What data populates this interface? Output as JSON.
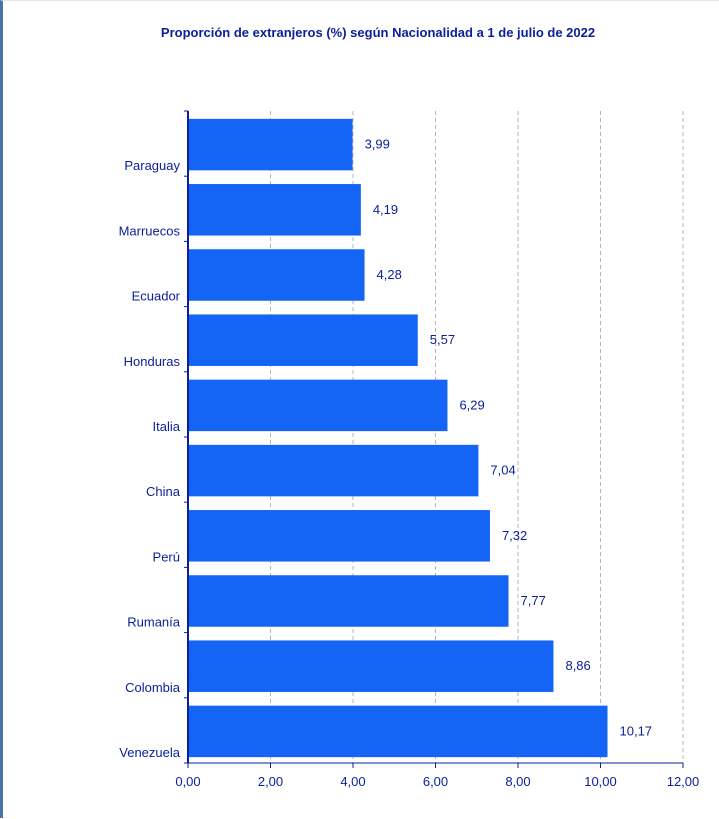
{
  "chart_data": {
    "type": "bar",
    "orientation": "horizontal",
    "title": "Proporción de extranjeros (%) según Nacionalidad a 1 de julio de 2022",
    "categories": [
      "Paraguay",
      "Marruecos",
      "Ecuador",
      "Honduras",
      "Italia",
      "China",
      "Perú",
      "Rumanía",
      "Colombia",
      "Venezuela"
    ],
    "values": [
      3.99,
      4.19,
      4.28,
      5.57,
      6.29,
      7.04,
      7.32,
      7.77,
      8.86,
      10.17
    ],
    "value_labels": [
      "3,99",
      "4,19",
      "4,28",
      "5,57",
      "6,29",
      "7,04",
      "7,32",
      "7,77",
      "8,86",
      "10,17"
    ],
    "xlim": [
      0,
      12
    ],
    "xticks": [
      "0,00",
      "2,00",
      "4,00",
      "6,00",
      "8,00",
      "10,00",
      "12,00"
    ],
    "xlabel": "",
    "ylabel": "",
    "grid": "vertical dashed",
    "legend": "none",
    "bar_color": "#1464f5",
    "text_color": "#0a1f99"
  }
}
